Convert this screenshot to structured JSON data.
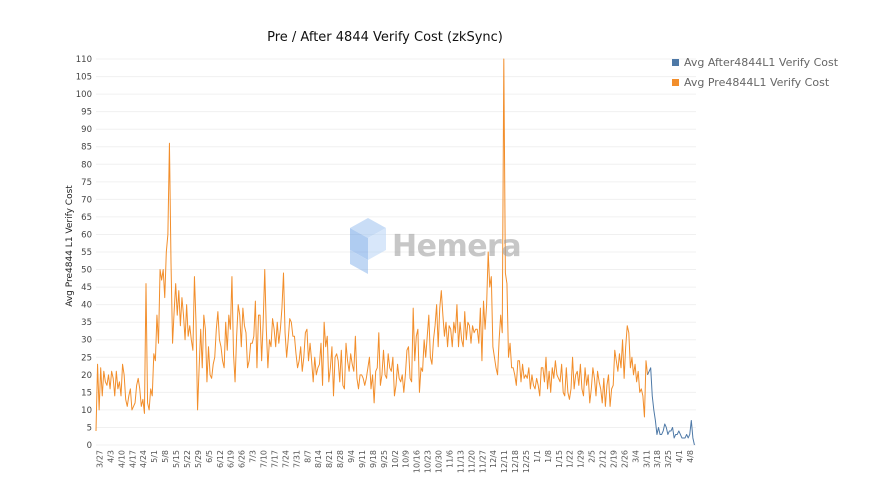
{
  "chart_data": {
    "type": "line",
    "title": "Pre / After 4844 Verify Cost (zkSync)",
    "ylabel": "Avg Pre4844 L1 Verify Cost",
    "xlabel": "",
    "ylim": [
      0,
      112
    ],
    "yticks": [
      0,
      5,
      10,
      15,
      20,
      25,
      30,
      35,
      40,
      45,
      50,
      55,
      60,
      65,
      70,
      75,
      80,
      85,
      90,
      95,
      100,
      105,
      110
    ],
    "xticks": [
      "3/27",
      "4/3",
      "4/10",
      "4/17",
      "4/24",
      "5/1",
      "5/8",
      "5/15",
      "5/22",
      "5/29",
      "6/5",
      "6/12",
      "6/19",
      "6/26",
      "7/3",
      "7/10",
      "7/17",
      "7/24",
      "7/31",
      "8/7",
      "8/14",
      "8/21",
      "8/28",
      "9/4",
      "9/11",
      "9/18",
      "9/25",
      "10/2",
      "10/9",
      "10/16",
      "10/23",
      "10/30",
      "11/6",
      "11/13",
      "11/20",
      "11/27",
      "12/4",
      "12/11",
      "12/18",
      "12/25",
      "1/1",
      "1/8",
      "1/15",
      "1/22",
      "1/29",
      "2/5",
      "2/12",
      "2/19",
      "2/26",
      "3/4",
      "3/11",
      "3/18",
      "3/25",
      "4/1",
      "4/8"
    ],
    "legend_position": "top-right",
    "series": [
      {
        "name": "Avg Pre4844L1 Verify Cost",
        "color": "#f28e2b",
        "values": [
          4,
          23,
          10,
          22,
          14,
          21,
          18,
          17,
          20,
          16,
          21,
          19,
          14,
          21,
          16,
          18,
          14,
          23,
          20,
          13,
          11,
          14,
          16,
          10,
          11,
          12,
          17,
          19,
          16,
          11,
          13,
          9,
          46,
          12,
          10,
          16,
          14,
          26,
          24,
          37,
          29,
          50,
          47,
          50,
          42,
          55,
          60,
          86,
          52,
          29,
          38,
          46,
          37,
          44,
          34,
          42,
          37,
          30,
          40,
          31,
          34,
          30,
          27,
          48,
          35,
          10,
          22,
          33,
          22,
          37,
          33,
          18,
          28,
          20,
          19,
          23,
          25,
          33,
          38,
          30,
          28,
          24,
          22,
          35,
          27,
          37,
          33,
          48,
          26,
          18,
          31,
          40,
          37,
          28,
          39,
          34,
          32,
          22,
          24,
          29,
          29,
          31,
          41,
          22,
          37,
          37,
          24,
          35,
          50,
          33,
          22,
          30,
          28,
          36,
          33,
          28,
          35,
          29,
          33,
          39,
          49,
          32,
          25,
          30,
          36,
          35,
          31,
          31,
          26,
          22,
          24,
          28,
          21,
          25,
          32,
          33,
          24,
          29,
          24,
          18,
          25,
          20,
          22,
          23,
          29,
          17,
          35,
          28,
          31,
          18,
          22,
          28,
          14,
          25,
          26,
          24,
          18,
          27,
          17,
          16,
          29,
          24,
          21,
          26,
          23,
          21,
          31,
          19,
          16,
          20,
          20,
          19,
          17,
          19,
          22,
          25,
          16,
          20,
          12,
          21,
          22,
          32,
          17,
          20,
          27,
          20,
          19,
          26,
          22,
          21,
          25,
          14,
          17,
          23,
          19,
          18,
          20,
          15,
          20,
          27,
          28,
          19,
          18,
          39,
          24,
          31,
          33,
          15,
          22,
          21,
          30,
          25,
          31,
          37,
          25,
          23,
          30,
          34,
          40,
          28,
          39,
          44,
          37,
          31,
          35,
          28,
          34,
          33,
          28,
          35,
          32,
          40,
          28,
          35,
          30,
          28,
          38,
          30,
          35,
          34,
          29,
          34,
          32,
          33,
          33,
          29,
          39,
          24,
          41,
          33,
          40,
          55,
          45,
          48,
          28,
          25,
          22,
          20,
          30,
          37,
          32,
          110,
          49,
          46,
          25,
          29,
          22,
          22,
          20,
          17,
          24,
          24,
          18,
          23,
          19,
          20,
          19,
          22,
          16,
          20,
          17,
          16,
          19,
          17,
          14,
          22,
          22,
          18,
          25,
          16,
          21,
          15,
          22,
          19,
          24,
          20,
          19,
          18,
          23,
          15,
          14,
          22,
          15,
          13,
          16,
          25,
          16,
          20,
          21,
          17,
          23,
          16,
          14,
          22,
          17,
          20,
          12,
          16,
          22,
          19,
          14,
          21,
          18,
          16,
          12,
          19,
          11,
          17,
          20,
          11,
          16,
          17,
          27,
          24,
          21,
          26,
          22,
          30,
          19,
          28,
          34,
          32,
          22,
          25,
          20,
          23,
          18,
          21,
          15,
          16,
          14,
          8,
          24,
          20
        ]
      },
      {
        "name": "Avg After4844L1 Verify Cost",
        "color": "#4e79a7",
        "values": [
          20,
          21,
          22,
          14,
          10,
          7,
          3,
          5,
          3,
          3,
          4,
          6,
          5,
          3,
          4,
          4,
          5,
          2,
          3,
          3,
          4,
          3,
          2,
          2,
          2,
          3,
          2,
          3,
          7,
          2,
          0
        ]
      }
    ]
  }
}
